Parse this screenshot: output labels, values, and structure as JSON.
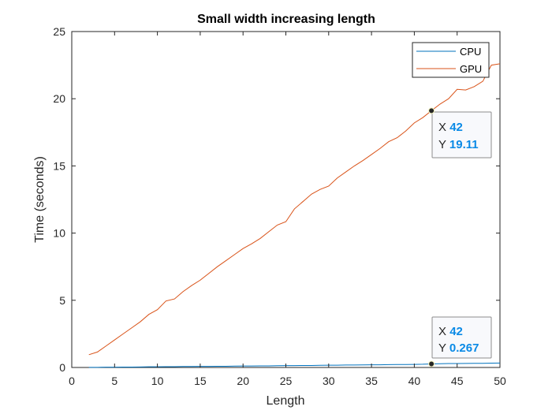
{
  "chart_data": {
    "type": "line",
    "title": "Small width increasing length",
    "xlabel": "Length",
    "ylabel": "Time (seconds)",
    "xlim": [
      0,
      50
    ],
    "ylim": [
      0,
      25
    ],
    "xticks": [
      "0",
      "5",
      "10",
      "15",
      "20",
      "25",
      "30",
      "35",
      "40",
      "45",
      "50"
    ],
    "yticks": [
      "0",
      "5",
      "10",
      "15",
      "20",
      "25"
    ],
    "grid": false,
    "legend_position": "top-right",
    "x": [
      2,
      3,
      4,
      5,
      6,
      7,
      8,
      9,
      10,
      11,
      12,
      13,
      14,
      15,
      16,
      17,
      18,
      19,
      20,
      21,
      22,
      23,
      24,
      25,
      26,
      27,
      28,
      29,
      30,
      31,
      32,
      33,
      34,
      35,
      36,
      37,
      38,
      39,
      40,
      41,
      42,
      43,
      44,
      45,
      46,
      47,
      48,
      49,
      50
    ],
    "series": [
      {
        "name": "CPU",
        "color": "#0072bd",
        "values": [
          0.01,
          0.01,
          0.02,
          0.02,
          0.03,
          0.03,
          0.04,
          0.05,
          0.05,
          0.06,
          0.06,
          0.07,
          0.07,
          0.08,
          0.08,
          0.09,
          0.09,
          0.1,
          0.11,
          0.11,
          0.12,
          0.12,
          0.13,
          0.14,
          0.14,
          0.15,
          0.15,
          0.16,
          0.17,
          0.17,
          0.18,
          0.18,
          0.19,
          0.2,
          0.2,
          0.21,
          0.22,
          0.22,
          0.23,
          0.24,
          0.267,
          0.28,
          0.29,
          0.29,
          0.3,
          0.31,
          0.31,
          0.32,
          0.33
        ]
      },
      {
        "name": "GPU",
        "color": "#d95319",
        "values": [
          0.95,
          1.15,
          1.6,
          2.05,
          2.5,
          2.95,
          3.4,
          3.95,
          4.3,
          4.95,
          5.1,
          5.65,
          6.1,
          6.5,
          7.0,
          7.5,
          7.95,
          8.4,
          8.85,
          9.2,
          9.6,
          10.1,
          10.6,
          10.85,
          11.8,
          12.35,
          12.9,
          13.25,
          13.5,
          14.1,
          14.55,
          15.0,
          15.4,
          15.85,
          16.3,
          16.8,
          17.1,
          17.6,
          18.2,
          18.6,
          19.11,
          19.6,
          20.0,
          20.7,
          20.65,
          20.9,
          21.3,
          22.5,
          22.6
        ]
      }
    ],
    "datatips": [
      {
        "series": "GPU",
        "x_label": "X",
        "y_label": "Y",
        "x": 42,
        "y": 19.11,
        "x_text": "42",
        "y_text": "19.11"
      },
      {
        "series": "CPU",
        "x_label": "X",
        "y_label": "Y",
        "x": 42,
        "y": 0.267,
        "x_text": "42",
        "y_text": "0.267"
      }
    ]
  }
}
